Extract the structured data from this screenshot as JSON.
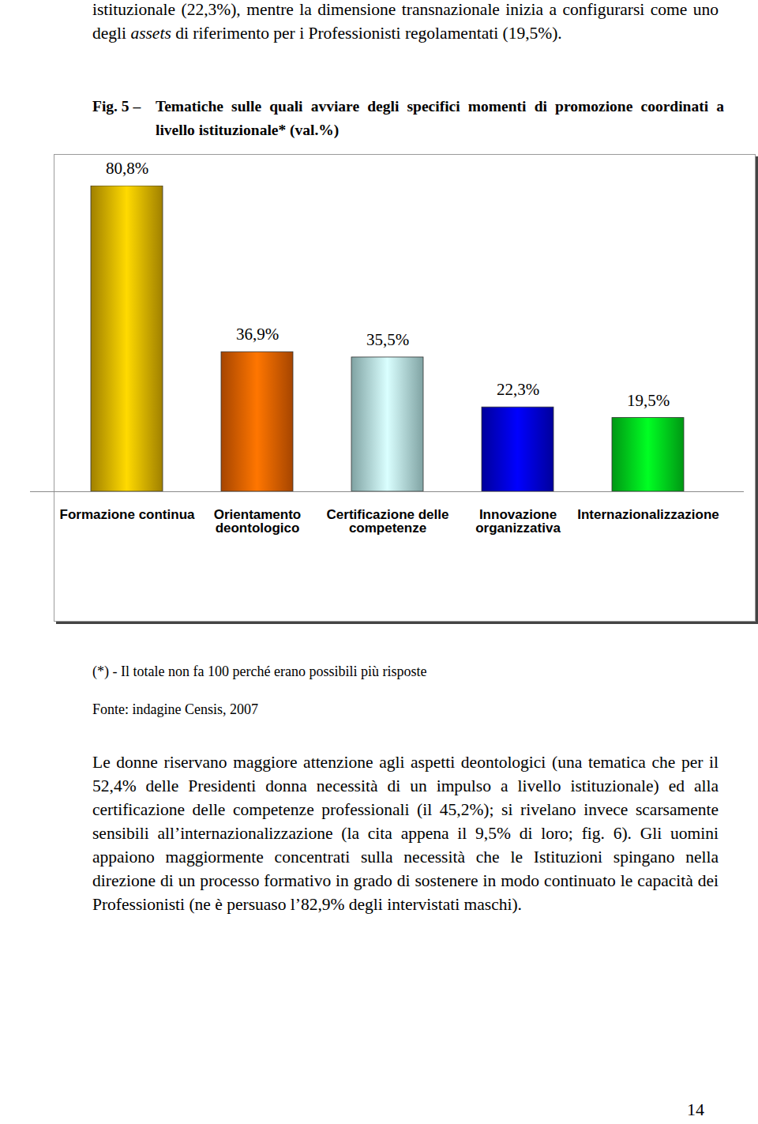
{
  "top_paragraph": [
    {
      "text": "istituzionale (22,3%), mentre la dimensione transnazionale inizia a configurarsi come uno degli "
    },
    {
      "text": "assets",
      "italic": true
    },
    {
      "text": " di riferimento per i Professionisti regolamentati (19,5%)."
    }
  ],
  "figure_label": "Fig. 5 –",
  "chart_data": {
    "type": "bar",
    "title": "Tematiche sulle quali avviare degli specifici momenti di promozione coordinati a livello istituzionale* (val.%)",
    "categories": [
      "Formazione continua",
      "Orientamento deontologico",
      "Certificazione delle competenze",
      "Innovazione organizzativa",
      "Internazionalizzazione"
    ],
    "values": [
      80.8,
      36.9,
      35.5,
      22.3,
      19.5
    ],
    "value_labels": [
      "80,8%",
      "36,9%",
      "35,5%",
      "22,3%",
      "19,5%"
    ],
    "colors": [
      "#f5c400",
      "#ff6a00",
      "#c4fafa",
      "#0000ee",
      "#00e81f"
    ],
    "data_labels": true,
    "tick_labels": "x"
  },
  "figure_notes": [
    "(*) - Il totale non fa 100 perché erano possibili più risposte",
    "Fonte: indagine Censis, 2007"
  ],
  "paragraph": "Le donne riservano maggiore attenzione agli aspetti deontologici (una tematica che per il 52,4% delle Presidenti donna necessità di un impulso a livello istituzionale) ed alla certificazione delle competenze professionali (il 45,2%); si rivelano invece scarsamente sensibili all’internazionalizzazione (la cita appena il 9,5% di loro; fig. 6). Gli uomini appaiono maggiormente concentrati sulla necessità che le Istituzioni spingano nella direzione di un processo formativo in grado di sostenere in modo continuato le capacità dei Professionisti (ne è persuaso l’82,9% degli intervistati maschi).",
  "page_number": "14"
}
